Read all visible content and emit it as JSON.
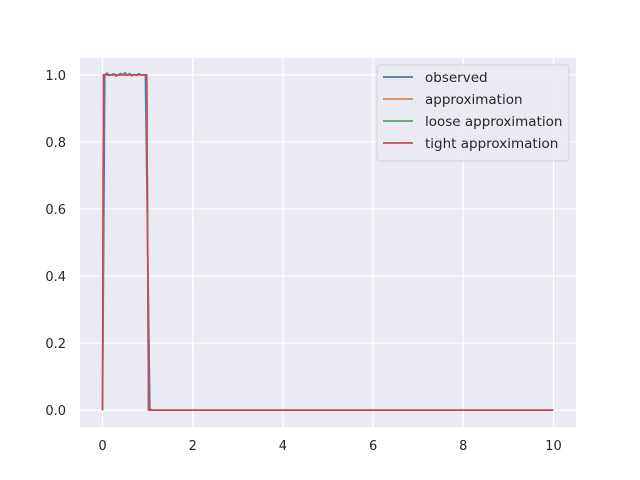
{
  "chart_data": {
    "type": "line",
    "title": "",
    "xlabel": "",
    "ylabel": "",
    "xlim": [
      -0.5,
      10.5
    ],
    "ylim": [
      -0.05,
      1.05
    ],
    "xticks": [
      0,
      2,
      4,
      6,
      8,
      10
    ],
    "yticks": [
      0.0,
      0.2,
      0.4,
      0.6,
      0.8,
      1.0
    ],
    "xtick_labels": [
      "0",
      "2",
      "4",
      "6",
      "8",
      "10"
    ],
    "ytick_labels": [
      "0.0",
      "0.2",
      "0.4",
      "0.6",
      "0.8",
      "1.0"
    ],
    "grid": true,
    "legend_position": "top-right",
    "series": [
      {
        "name": "observed",
        "color": "#4c72b0",
        "x": [
          0,
          0.05,
          0.1,
          0.15,
          0.2,
          0.25,
          0.3,
          0.35,
          0.4,
          0.45,
          0.5,
          0.55,
          0.6,
          0.65,
          0.7,
          0.75,
          0.8,
          0.85,
          0.9,
          0.95,
          1.0,
          1.05,
          1.1,
          10
        ],
        "y": [
          0,
          1.0,
          1.005,
          0.998,
          1.0,
          1.003,
          0.996,
          1.0,
          1.004,
          0.999,
          1.006,
          0.998,
          1.004,
          0.997,
          1.001,
          0.998,
          1.003,
          1.0,
          0.999,
          1.0,
          0.5,
          0.005,
          0,
          0
        ]
      },
      {
        "name": "approximation",
        "color": "#dd8452",
        "x": [
          0,
          0.02,
          0.98,
          1.02,
          10
        ],
        "y": [
          0,
          1.0,
          1.0,
          0,
          0
        ]
      },
      {
        "name": "loose approximation",
        "color": "#55a868",
        "x": [
          0,
          0.02,
          0.98,
          1.02,
          10
        ],
        "y": [
          0,
          1.0,
          1.0,
          0,
          0
        ]
      },
      {
        "name": "tight approximation",
        "color": "#c44e52",
        "x": [
          0,
          0.02,
          0.98,
          1.02,
          10
        ],
        "y": [
          0,
          1.0,
          1.0,
          0,
          0
        ]
      }
    ]
  }
}
